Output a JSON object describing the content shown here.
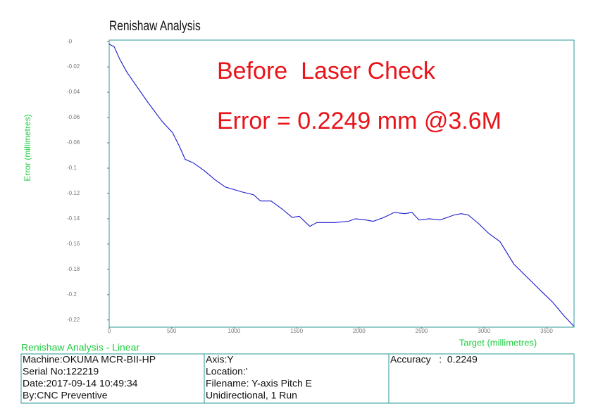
{
  "chart_data": {
    "type": "line",
    "title": "Renishaw Analysis",
    "annotations": [
      "Before  Laser Check",
      "Error = 0.2249 mm @3.6M"
    ],
    "y_label": "Error (millimetres)",
    "x_label": "Target (millimetres)",
    "x": [
      0,
      40,
      85,
      141,
      225,
      310,
      423,
      507,
      563,
      608,
      676,
      761,
      845,
      930,
      1070,
      1155,
      1211,
      1296,
      1380,
      1465,
      1521,
      1606,
      1662,
      1803,
      1915,
      1972,
      2056,
      2113,
      2197,
      2282,
      2366,
      2423,
      2479,
      2563,
      2648,
      2761,
      2817,
      2873,
      2958,
      3042,
      3127,
      3239,
      3352,
      3465,
      3549,
      3634,
      3718
    ],
    "series": [
      {
        "color": "#1a1acc",
        "values": [
          -0.002,
          -0.004,
          -0.014,
          -0.024,
          -0.036,
          -0.048,
          -0.063,
          -0.072,
          -0.083,
          -0.093,
          -0.096,
          -0.102,
          -0.109,
          -0.115,
          -0.119,
          -0.121,
          -0.126,
          -0.126,
          -0.132,
          -0.139,
          -0.138,
          -0.146,
          -0.143,
          -0.143,
          -0.142,
          -0.14,
          -0.141,
          -0.142,
          -0.139,
          -0.135,
          -0.136,
          -0.135,
          -0.141,
          -0.14,
          -0.141,
          -0.137,
          -0.136,
          -0.137,
          -0.144,
          -0.152,
          -0.158,
          -0.176,
          -0.187,
          -0.198,
          -0.206,
          -0.216,
          -0.2249
        ]
      }
    ],
    "xlim": [
      0,
      3720
    ],
    "xticks": [
      0,
      500,
      1000,
      1500,
      2000,
      2500,
      3000,
      3500
    ],
    "ylim": [
      -0.2257,
      0.0012
    ],
    "yticks": [
      {
        "value": 0,
        "label": "-0"
      },
      -0.02,
      -0.04,
      -0.06,
      -0.08,
      -0.1,
      -0.12,
      -0.14,
      -0.16,
      -0.18,
      -0.2,
      -0.22
    ]
  },
  "info_table": {
    "caption": "Renishaw Analysis - Linear",
    "columns": [
      [
        "Machine:OKUMA MCR-BII-HP",
        "Serial No:122219",
        "Date:2017-09-14 10:49:34",
        "By:CNC Preventive"
      ],
      [
        "Axis:Y",
        "Location:'",
        "Filename: Y-axis Pitch E",
        "Unidirectional, 1 Run"
      ],
      [
        "Accuracy   :  0.2249"
      ]
    ]
  }
}
